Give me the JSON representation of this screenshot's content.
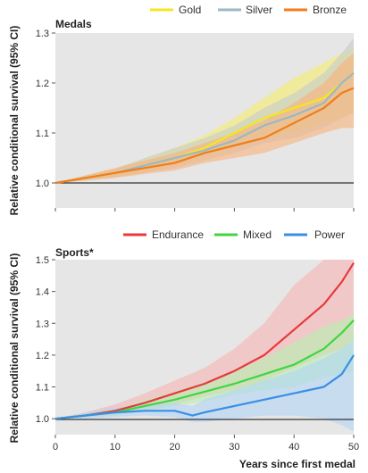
{
  "chart_data": [
    {
      "type": "line",
      "title": "Medals",
      "ylabel": "Relative conditional survival (95% CI)",
      "xlabel": "",
      "xlim": [
        0,
        50
      ],
      "ylim": [
        0.95,
        1.3
      ],
      "yticks": [
        1.0,
        1.1,
        1.2,
        1.3
      ],
      "ytick_labels": [
        "1.0",
        "1.1",
        "1.2",
        "1.3"
      ],
      "xticks": [
        0,
        10,
        20,
        30,
        40,
        50
      ],
      "xtick_labels": [],
      "grid": false,
      "reference_line": 1.0,
      "legend_position": "top",
      "series": [
        {
          "name": "Gold",
          "color": "#f5e61e",
          "band_color": "#f7ef6a",
          "x": [
            0,
            5,
            10,
            15,
            20,
            25,
            30,
            35,
            40,
            45,
            48,
            50
          ],
          "y": [
            1.0,
            1.01,
            1.02,
            1.035,
            1.05,
            1.07,
            1.1,
            1.13,
            1.15,
            1.17,
            1.2,
            1.22
          ],
          "lower": [
            1.0,
            1.005,
            1.012,
            1.02,
            1.035,
            1.05,
            1.07,
            1.09,
            1.1,
            1.12,
            1.13,
            1.14
          ],
          "upper": [
            1.0,
            1.015,
            1.028,
            1.05,
            1.07,
            1.095,
            1.13,
            1.17,
            1.21,
            1.24,
            1.26,
            1.27
          ]
        },
        {
          "name": "Silver",
          "color": "#9ab8c4",
          "band_color": "#c4ccd0",
          "x": [
            0,
            5,
            10,
            15,
            20,
            25,
            30,
            35,
            40,
            45,
            48,
            50
          ],
          "y": [
            1.0,
            1.01,
            1.02,
            1.035,
            1.05,
            1.065,
            1.085,
            1.115,
            1.135,
            1.16,
            1.2,
            1.22
          ],
          "lower": [
            1.0,
            1.005,
            1.012,
            1.02,
            1.03,
            1.045,
            1.06,
            1.08,
            1.09,
            1.11,
            1.13,
            1.14
          ],
          "upper": [
            1.0,
            1.015,
            1.028,
            1.05,
            1.07,
            1.09,
            1.115,
            1.15,
            1.18,
            1.22,
            1.26,
            1.29
          ]
        },
        {
          "name": "Bronze",
          "color": "#f07d1a",
          "band_color": "#f9b27a",
          "x": [
            0,
            5,
            10,
            15,
            20,
            25,
            30,
            35,
            40,
            45,
            48,
            50
          ],
          "y": [
            1.0,
            1.01,
            1.02,
            1.03,
            1.04,
            1.06,
            1.075,
            1.09,
            1.12,
            1.15,
            1.18,
            1.19
          ],
          "lower": [
            1.0,
            1.005,
            1.01,
            1.018,
            1.025,
            1.04,
            1.05,
            1.06,
            1.08,
            1.1,
            1.11,
            1.11
          ],
          "upper": [
            1.0,
            1.015,
            1.03,
            1.045,
            1.06,
            1.08,
            1.1,
            1.125,
            1.16,
            1.2,
            1.24,
            1.26
          ]
        }
      ]
    },
    {
      "type": "line",
      "title": "Sports*",
      "ylabel": "Relative conditional survival (95% CI)",
      "xlabel": "Years since first medal",
      "xlim": [
        0,
        50
      ],
      "ylim": [
        0.95,
        1.5
      ],
      "yticks": [
        1.0,
        1.1,
        1.2,
        1.3,
        1.4,
        1.5
      ],
      "ytick_labels": [
        "1.0",
        "1.1",
        "1.2",
        "1.3",
        "1.4",
        "1.5"
      ],
      "xticks": [
        0,
        10,
        20,
        30,
        40,
        50
      ],
      "xtick_labels": [
        "0",
        "10",
        "20",
        "30",
        "40",
        "50"
      ],
      "grid": false,
      "reference_line": 1.0,
      "legend_position": "top",
      "series": [
        {
          "name": "Endurance",
          "color": "#e8393c",
          "band_color": "#f7b4b4",
          "x": [
            0,
            5,
            10,
            15,
            20,
            25,
            30,
            35,
            40,
            45,
            48,
            50
          ],
          "y": [
            1.0,
            1.01,
            1.025,
            1.05,
            1.08,
            1.11,
            1.15,
            1.2,
            1.28,
            1.36,
            1.43,
            1.49
          ],
          "lower": [
            1.0,
            1.005,
            1.01,
            1.025,
            1.045,
            1.07,
            1.09,
            1.12,
            1.16,
            1.2,
            1.22,
            1.25
          ],
          "upper": [
            1.0,
            1.02,
            1.045,
            1.08,
            1.12,
            1.16,
            1.22,
            1.3,
            1.42,
            1.5,
            1.5,
            1.5
          ]
        },
        {
          "name": "Mixed",
          "color": "#3fd63f",
          "band_color": "#b5f0b0",
          "x": [
            0,
            5,
            10,
            15,
            20,
            25,
            30,
            35,
            40,
            45,
            48,
            50
          ],
          "y": [
            1.0,
            1.01,
            1.02,
            1.04,
            1.06,
            1.085,
            1.11,
            1.14,
            1.17,
            1.22,
            1.27,
            1.31
          ],
          "lower": [
            1.0,
            1.005,
            1.01,
            1.025,
            1.04,
            1.055,
            1.075,
            1.09,
            1.1,
            1.13,
            1.14,
            1.15
          ],
          "upper": [
            1.0,
            1.015,
            1.03,
            1.06,
            1.085,
            1.115,
            1.15,
            1.19,
            1.24,
            1.29,
            1.31,
            1.33
          ]
        },
        {
          "name": "Power",
          "color": "#3a8ee6",
          "band_color": "#b3d5f5",
          "x": [
            0,
            5,
            10,
            15,
            20,
            23,
            25,
            30,
            35,
            40,
            45,
            48,
            50
          ],
          "y": [
            1.0,
            1.01,
            1.02,
            1.025,
            1.025,
            1.01,
            1.02,
            1.04,
            1.06,
            1.08,
            1.1,
            1.14,
            1.2
          ],
          "lower": [
            1.0,
            1.0,
            1.005,
            1.01,
            1.005,
            0.99,
            0.99,
            1.0,
            1.01,
            1.01,
            1.0,
            0.98,
            0.96
          ],
          "upper": [
            1.0,
            1.02,
            1.035,
            1.045,
            1.05,
            1.04,
            1.06,
            1.09,
            1.12,
            1.15,
            1.19,
            1.22,
            1.25
          ]
        }
      ]
    }
  ]
}
